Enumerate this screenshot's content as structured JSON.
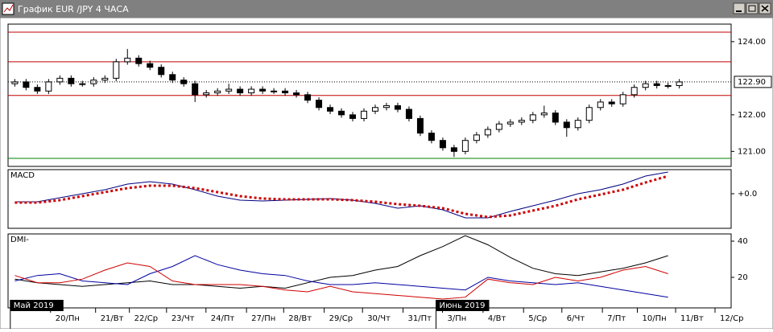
{
  "window": {
    "title": "График EUR /JPY  4 ЧАСА"
  },
  "chart_data": [
    {
      "type": "candlestick",
      "xlim": [
        -0.6,
        63.6
      ],
      "ylim": [
        120.59,
        124.48
      ],
      "yticks": [
        {
          "value": 121,
          "label": "121.00"
        },
        {
          "value": 122,
          "label": "122.00"
        },
        {
          "value": 124,
          "label": "124.00"
        }
      ],
      "last_price": {
        "value": 122.9,
        "label": "122.90"
      },
      "levels": [
        {
          "value": 124.26,
          "color": "#c00000"
        },
        {
          "value": 123.45,
          "color": "#c00000"
        },
        {
          "value": 122.53,
          "color": "#c00000"
        },
        {
          "value": 120.81,
          "color": "#008000"
        }
      ],
      "up_color": "#ffffff",
      "down_color": "#000000",
      "open": [
        122.85,
        122.9,
        122.75,
        122.65,
        122.9,
        123.0,
        122.85,
        122.85,
        122.95,
        123.0,
        123.45,
        123.55,
        123.4,
        123.3,
        123.1,
        122.95,
        122.85,
        122.55,
        122.6,
        122.65,
        122.7,
        122.6,
        122.7,
        122.65,
        122.65,
        122.6,
        122.55,
        122.4,
        122.2,
        122.1,
        122.0,
        121.9,
        122.1,
        122.2,
        122.25,
        122.15,
        121.9,
        121.5,
        121.3,
        121.1,
        121.0,
        121.3,
        121.45,
        121.6,
        121.75,
        121.8,
        121.85,
        122.0,
        122.05,
        121.8,
        121.65,
        121.85,
        122.2,
        122.35,
        122.3,
        122.55,
        122.75,
        122.85,
        122.8,
        122.8
      ],
      "high": [
        122.98,
        122.98,
        122.83,
        122.98,
        123.08,
        123.08,
        122.93,
        123.03,
        123.08,
        123.53,
        123.8,
        123.63,
        123.48,
        123.38,
        123.18,
        123.03,
        122.93,
        122.68,
        122.73,
        122.85,
        122.78,
        122.78,
        122.78,
        122.73,
        122.73,
        122.68,
        122.63,
        122.48,
        122.28,
        122.18,
        122.08,
        122.18,
        122.28,
        122.33,
        122.33,
        122.23,
        121.98,
        121.58,
        121.38,
        121.18,
        121.38,
        121.53,
        121.68,
        121.83,
        121.88,
        121.93,
        122.08,
        122.25,
        122.13,
        121.88,
        121.93,
        122.28,
        122.43,
        122.43,
        122.63,
        122.83,
        122.93,
        122.93,
        122.88,
        122.98
      ],
      "low": [
        122.77,
        122.67,
        122.57,
        122.57,
        122.82,
        122.77,
        122.77,
        122.77,
        122.87,
        122.92,
        123.37,
        123.32,
        123.22,
        123.02,
        122.87,
        122.77,
        122.35,
        122.47,
        122.52,
        122.57,
        122.52,
        122.52,
        122.57,
        122.57,
        122.52,
        122.47,
        122.32,
        122.12,
        122.02,
        121.92,
        121.82,
        121.82,
        122.02,
        122.12,
        122.07,
        121.82,
        121.42,
        121.22,
        121.02,
        120.85,
        120.92,
        121.22,
        121.37,
        121.52,
        121.67,
        121.72,
        121.77,
        121.92,
        121.72,
        121.4,
        121.57,
        121.77,
        122.12,
        122.22,
        122.22,
        122.47,
        122.67,
        122.72,
        122.72,
        122.72
      ],
      "close": [
        122.9,
        122.75,
        122.65,
        122.9,
        123.0,
        122.85,
        122.85,
        122.95,
        123.0,
        123.45,
        123.55,
        123.4,
        123.3,
        123.1,
        122.95,
        122.85,
        122.55,
        122.6,
        122.65,
        122.7,
        122.6,
        122.7,
        122.65,
        122.65,
        122.6,
        122.55,
        122.4,
        122.2,
        122.1,
        122.0,
        121.9,
        122.1,
        122.2,
        122.25,
        122.15,
        121.9,
        121.5,
        121.3,
        121.1,
        121.0,
        121.3,
        121.45,
        121.6,
        121.75,
        121.8,
        121.85,
        122.0,
        122.05,
        121.8,
        121.65,
        121.85,
        122.2,
        122.35,
        122.3,
        122.55,
        122.75,
        122.85,
        122.8,
        122.8,
        122.9
      ]
    },
    {
      "type": "line",
      "title": "MACD",
      "xlim": [
        -0.6,
        63.6
      ],
      "ylim": [
        -0.43,
        0.3
      ],
      "yticks": [
        {
          "value": 0,
          "label": "+0.0"
        }
      ],
      "x": [
        0,
        2,
        4,
        6,
        8,
        10,
        12,
        14,
        16,
        18,
        20,
        22,
        24,
        26,
        28,
        30,
        32,
        34,
        36,
        38,
        40,
        42,
        44,
        46,
        48,
        50,
        52,
        54,
        56,
        58
      ],
      "series": [
        {
          "color": "#000080",
          "style": "solid",
          "values": [
            -0.1,
            -0.1,
            -0.05,
            0.0,
            0.05,
            0.12,
            0.15,
            0.12,
            0.05,
            -0.03,
            -0.08,
            -0.09,
            -0.08,
            -0.07,
            -0.06,
            -0.08,
            -0.12,
            -0.18,
            -0.15,
            -0.2,
            -0.3,
            -0.3,
            -0.22,
            -0.15,
            -0.08,
            0.0,
            0.05,
            0.12,
            0.22,
            0.27
          ]
        },
        {
          "color": "#cc0000",
          "style": "dotted",
          "values": [
            -0.11,
            -0.11,
            -0.08,
            -0.03,
            0.02,
            0.07,
            0.1,
            0.1,
            0.07,
            0.02,
            -0.03,
            -0.06,
            -0.07,
            -0.07,
            -0.07,
            -0.08,
            -0.1,
            -0.13,
            -0.15,
            -0.18,
            -0.25,
            -0.29,
            -0.27,
            -0.21,
            -0.15,
            -0.07,
            -0.01,
            0.05,
            0.14,
            0.22
          ]
        }
      ]
    },
    {
      "type": "line",
      "title": "DMI-",
      "xlim": [
        -0.6,
        63.6
      ],
      "ylim": [
        3.1,
        44
      ],
      "yticks": [
        20,
        40
      ],
      "x": [
        0,
        2,
        4,
        6,
        8,
        10,
        12,
        14,
        16,
        18,
        20,
        22,
        24,
        26,
        28,
        30,
        32,
        34,
        36,
        38,
        40,
        42,
        44,
        46,
        48,
        50,
        52,
        54,
        56,
        58
      ],
      "series": [
        {
          "color": "#000000",
          "style": "solid",
          "values": [
            19,
            17,
            16,
            15,
            16,
            17,
            18,
            16,
            16,
            15,
            14,
            15,
            14,
            17,
            20,
            21,
            24,
            26,
            32,
            37,
            43,
            38,
            31,
            25,
            22,
            21,
            23,
            25,
            28,
            32
          ]
        },
        {
          "color": "#0000a0",
          "style": "solid",
          "values": [
            18,
            21,
            22,
            18,
            17,
            16,
            22,
            26,
            32,
            27,
            24,
            22,
            21,
            18,
            16,
            16,
            17,
            16,
            15,
            14,
            13,
            20,
            18,
            17,
            16,
            17,
            15,
            13,
            11,
            9
          ]
        },
        {
          "color": "#d00000",
          "style": "solid",
          "values": [
            21,
            17,
            17,
            19,
            24,
            28,
            26,
            18,
            16,
            16,
            16,
            15,
            13,
            12,
            15,
            12,
            11,
            10,
            9,
            8,
            9,
            19,
            17,
            16,
            20,
            18,
            20,
            24,
            26,
            22
          ]
        }
      ],
      "xticks": [
        {
          "value": 3.6,
          "label": "20/Пн"
        },
        {
          "value": 7.6,
          "label": "21/Вт"
        },
        {
          "value": 10.6,
          "label": "22/Ср"
        },
        {
          "value": 13.9,
          "label": "23/Чт"
        },
        {
          "value": 17.4,
          "label": "24/Пт"
        },
        {
          "value": 21,
          "label": "27/Пн"
        },
        {
          "value": 24.3,
          "label": "28/Вт"
        },
        {
          "value": 27.9,
          "label": "29/Ср"
        },
        {
          "value": 31.3,
          "label": "30/Чт"
        },
        {
          "value": 34.9,
          "label": "31/Пт"
        },
        {
          "value": 38.4,
          "label": "3/Пн"
        },
        {
          "value": 42,
          "label": "4/Вт"
        },
        {
          "value": 45.6,
          "label": "5/Ср"
        },
        {
          "value": 49,
          "label": "6/Чт"
        },
        {
          "value": 52.6,
          "label": "7/Пт"
        },
        {
          "value": 55.7,
          "label": "10/Пн"
        },
        {
          "value": 59.1,
          "label": "11/Вт"
        },
        {
          "value": 62.6,
          "label": "12/Ср"
        }
      ],
      "month_labels": [
        {
          "value": -0.4,
          "label": "Май 2019"
        },
        {
          "value": 37.4,
          "label": "Июнь 2019"
        }
      ]
    }
  ]
}
